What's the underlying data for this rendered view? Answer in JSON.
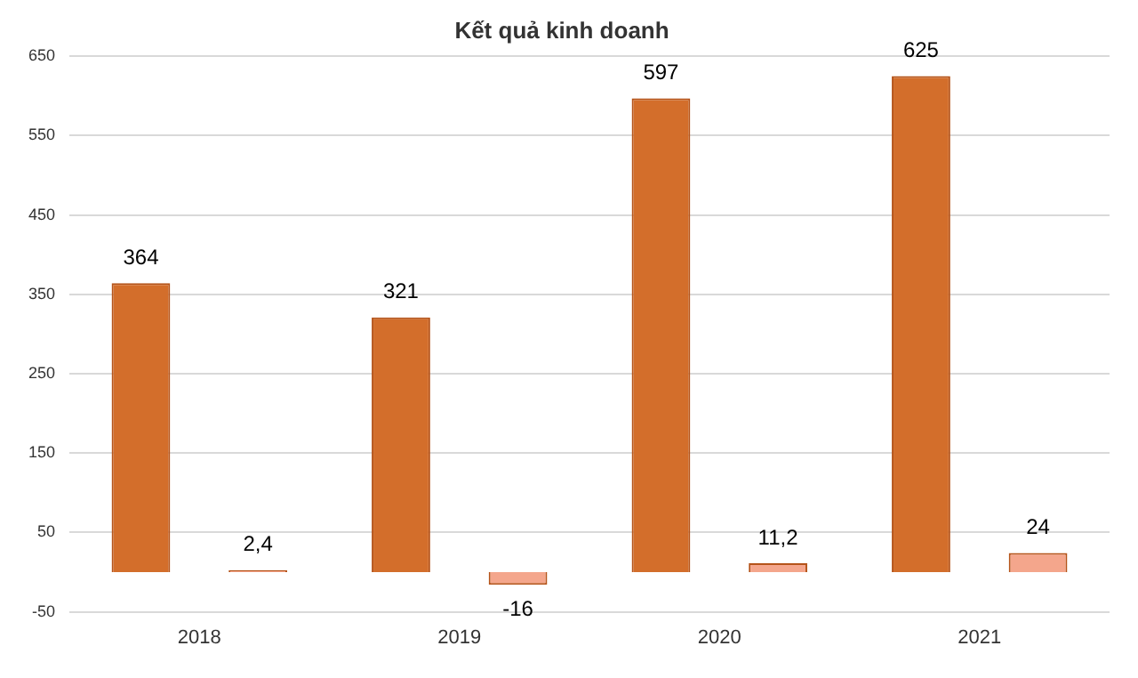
{
  "chart_data": {
    "type": "bar",
    "title": "Kết quả kinh doanh",
    "categories": [
      "2018",
      "2019",
      "2020",
      "2021"
    ],
    "series": [
      {
        "color": "#d36e2b",
        "values": [
          364,
          321,
          597,
          625
        ],
        "value_labels": [
          "364",
          "321",
          "597",
          "625"
        ]
      },
      {
        "color": "#f4a68c",
        "values": [
          2.4,
          -16,
          11.2,
          24
        ],
        "value_labels": [
          "2,4",
          "-16",
          "11,2",
          "24"
        ]
      }
    ],
    "ylim": [
      -50,
      650
    ],
    "yticks": [
      -50,
      50,
      150,
      250,
      350,
      450,
      550,
      650
    ],
    "grid": "y",
    "legend": false
  }
}
